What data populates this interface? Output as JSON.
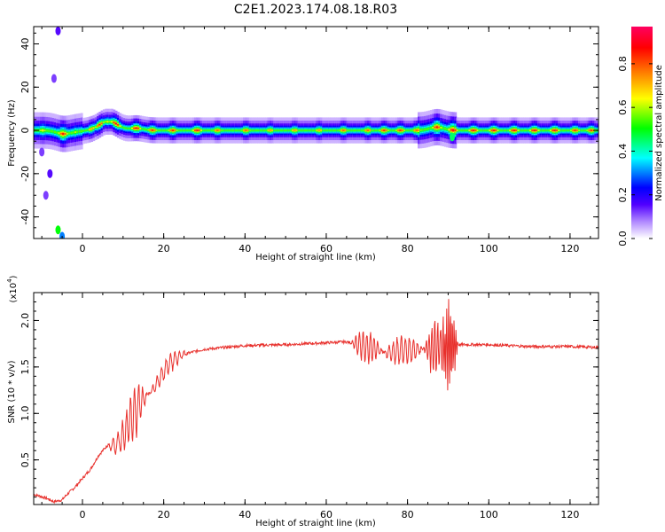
{
  "title": "C2E1.2023.174.08.18.R03",
  "chart_data": [
    {
      "type": "heatmap",
      "xlabel": "Height of straight line (km)",
      "ylabel": "Frequency (Hz)",
      "xlim": [
        -12,
        127
      ],
      "ylim": [
        -50,
        48
      ],
      "x_ticks": [
        0,
        20,
        40,
        60,
        80,
        100,
        120
      ],
      "y_ticks": [
        -40,
        -20,
        0,
        20,
        40
      ],
      "colorbar": {
        "label": "Normalized spectral amplitude",
        "range": [
          0,
          0.97
        ],
        "ticks": [
          0.0,
          0.2,
          0.4,
          0.6,
          0.8
        ],
        "colors": [
          "#ffffff",
          "#b088ff",
          "#5000ff",
          "#0000ff",
          "#00ffff",
          "#00ff00",
          "#ffff00",
          "#ff8000",
          "#ff0000",
          "#ff0060"
        ]
      },
      "band_center_hz": 0,
      "peaks": [
        {
          "x": -10,
          "y": 0,
          "amp": 0.65
        },
        {
          "x": -5,
          "y": -1.5,
          "amp": 0.85
        },
        {
          "x": -2,
          "y": -0.5,
          "amp": 0.6
        },
        {
          "x": 2,
          "y": 0,
          "amp": 0.75
        },
        {
          "x": 4,
          "y": 1,
          "amp": 0.85
        },
        {
          "x": 6,
          "y": 3,
          "amp": 0.65
        },
        {
          "x": 8,
          "y": 1.5,
          "amp": 0.9
        },
        {
          "x": 13,
          "y": 1,
          "amp": 0.9
        },
        {
          "x": 17,
          "y": 0,
          "amp": 0.85
        },
        {
          "x": 22,
          "y": 0,
          "amp": 0.85
        },
        {
          "x": 28,
          "y": 0,
          "amp": 0.9
        },
        {
          "x": 33,
          "y": 0,
          "amp": 0.8
        },
        {
          "x": 40,
          "y": 0,
          "amp": 0.8
        },
        {
          "x": 46,
          "y": 0,
          "amp": 0.75
        },
        {
          "x": 52,
          "y": 0,
          "amp": 0.75
        },
        {
          "x": 58,
          "y": 0,
          "amp": 0.75
        },
        {
          "x": 64,
          "y": 0,
          "amp": 0.8
        },
        {
          "x": 70,
          "y": 0,
          "amp": 0.8
        },
        {
          "x": 74,
          "y": 0,
          "amp": 0.85
        },
        {
          "x": 78,
          "y": 0,
          "amp": 0.85
        },
        {
          "x": 82,
          "y": 0,
          "amp": 0.8
        },
        {
          "x": 87,
          "y": 1.5,
          "amp": 0.85
        },
        {
          "x": 91,
          "y": 0,
          "amp": 0.9
        },
        {
          "x": 96,
          "y": 0,
          "amp": 0.9
        },
        {
          "x": 101,
          "y": 0,
          "amp": 0.9
        },
        {
          "x": 106,
          "y": 0,
          "amp": 0.9
        },
        {
          "x": 111,
          "y": 0,
          "amp": 0.9
        },
        {
          "x": 116,
          "y": 0,
          "amp": 0.9
        },
        {
          "x": 121,
          "y": 0,
          "amp": 0.85
        },
        {
          "x": 125,
          "y": 0,
          "amp": 0.85
        }
      ],
      "blobs": [
        {
          "x": -6,
          "y": -46,
          "amp": 0.5
        },
        {
          "x": -5,
          "y": -49,
          "amp": 0.3
        },
        {
          "x": -6,
          "y": 46,
          "amp": 0.15
        },
        {
          "x": -7,
          "y": 24,
          "amp": 0.12
        },
        {
          "x": -8,
          "y": -20,
          "amp": 0.15
        },
        {
          "x": -9,
          "y": -30,
          "amp": 0.12
        },
        {
          "x": -10,
          "y": -10,
          "amp": 0.12
        },
        {
          "x": 91,
          "y": -3,
          "amp": 0.45
        }
      ]
    },
    {
      "type": "line",
      "xlabel": "Height of straight line (km)",
      "ylabel": "SNR (10 * v/v)",
      "y_multiplier_label": "(x10",
      "y_multiplier_exp": "4",
      "y_multiplier_close": ")",
      "xlim": [
        -12,
        127
      ],
      "ylim": [
        0.02,
        2.3
      ],
      "x_ticks": [
        0,
        20,
        40,
        60,
        80,
        100,
        120
      ],
      "y_ticks": [
        0.5,
        1.0,
        1.5,
        2.0
      ],
      "color": "#e8302c",
      "trend": [
        [
          -12,
          0.13
        ],
        [
          -9,
          0.09
        ],
        [
          -7,
          0.05
        ],
        [
          -5,
          0.07
        ],
        [
          -4,
          0.12
        ],
        [
          -2,
          0.2
        ],
        [
          0,
          0.3
        ],
        [
          2,
          0.4
        ],
        [
          4,
          0.55
        ],
        [
          6,
          0.65
        ],
        [
          8,
          0.65
        ],
        [
          10,
          0.75
        ],
        [
          12,
          0.95
        ],
        [
          14,
          1.1
        ],
        [
          16,
          1.2
        ],
        [
          18,
          1.3
        ],
        [
          20,
          1.45
        ],
        [
          22,
          1.57
        ],
        [
          24,
          1.62
        ],
        [
          27,
          1.66
        ],
        [
          30,
          1.69
        ],
        [
          35,
          1.71
        ],
        [
          40,
          1.73
        ],
        [
          50,
          1.74
        ],
        [
          60,
          1.76
        ],
        [
          65,
          1.77
        ],
        [
          70,
          1.72
        ],
        [
          75,
          1.65
        ],
        [
          80,
          1.68
        ],
        [
          85,
          1.7
        ],
        [
          88,
          1.72
        ],
        [
          93,
          1.74
        ],
        [
          100,
          1.74
        ],
        [
          110,
          1.72
        ],
        [
          120,
          1.72
        ],
        [
          127,
          1.71
        ]
      ],
      "oscillations": [
        {
          "from": 6,
          "to": 12,
          "amp": 0.12,
          "period": 1.2
        },
        {
          "from": 9,
          "to": 16,
          "amp": 0.35,
          "period": 1.0
        },
        {
          "from": 16,
          "to": 26,
          "amp": 0.12,
          "period": 1.1
        },
        {
          "from": 66,
          "to": 74,
          "amp": 0.2,
          "period": 0.9
        },
        {
          "from": 74,
          "to": 84,
          "amp": 0.2,
          "period": 1.0
        },
        {
          "from": 84,
          "to": 90,
          "amp": 0.35,
          "period": 0.7
        },
        {
          "from": 88,
          "to": 92.5,
          "amp": 0.55,
          "period": 0.45
        }
      ]
    }
  ]
}
